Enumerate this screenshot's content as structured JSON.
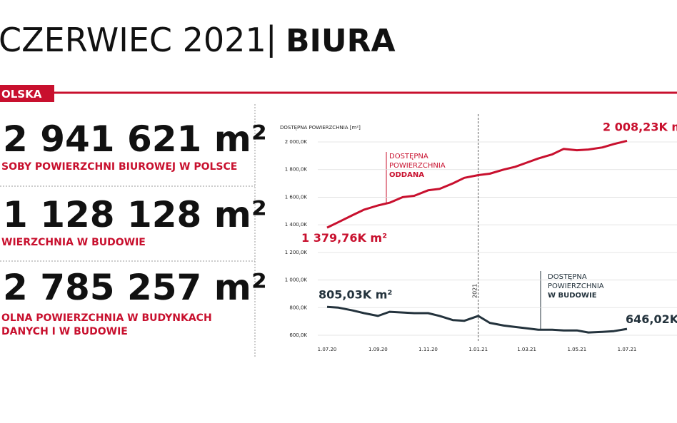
{
  "header": {
    "title": "CZERWIEC 2021",
    "separator": "|",
    "section": "BIURA",
    "tag": "OLSKA"
  },
  "stats": [
    {
      "value": "2 941 621 m²",
      "lines": [
        "SOBY POWIERZCHNI BIUROWEJ W POLSCE"
      ]
    },
    {
      "value": "1 128 128 m²",
      "lines": [
        "WIERZCHNIA W BUDOWIE"
      ]
    },
    {
      "value": "2 785 257 m²",
      "lines": [
        "OLNA POWIERZCHNIA W BUDYNKACH",
        "DANYCH I W BUDOWIE"
      ]
    }
  ],
  "chart_data": {
    "type": "line",
    "ylabel": "DOSTĘPNA POWIERZCHNIA [m²]",
    "annotation_lines": [
      "DOSTĘPNA",
      "POWIERZCHNIA"
    ],
    "marker_line": {
      "x": "2021-01-01",
      "label": "2021"
    },
    "x": [
      "2020-07-01",
      "2020-07-15",
      "2020-08-01",
      "2020-08-15",
      "2020-09-01",
      "2020-09-15",
      "2020-10-01",
      "2020-10-15",
      "2020-11-01",
      "2020-11-15",
      "2020-12-01",
      "2020-12-15",
      "2021-01-01",
      "2021-01-15",
      "2021-02-01",
      "2021-02-15",
      "2021-03-01",
      "2021-03-15",
      "2021-04-01",
      "2021-04-15",
      "2021-05-01",
      "2021-05-15",
      "2021-06-01",
      "2021-06-15",
      "2021-07-01"
    ],
    "series": [
      {
        "name": "ODDANA",
        "color": "#c8102e",
        "values": [
          1379.76,
          1420,
          1470,
          1510,
          1540,
          1560,
          1600,
          1610,
          1650,
          1660,
          1700,
          1740,
          1760,
          1770,
          1800,
          1820,
          1850,
          1880,
          1910,
          1950,
          1940,
          1945,
          1960,
          1985,
          2008.23
        ],
        "value_labels": [
          "1 379,76K m²",
          null,
          null,
          null,
          null,
          null,
          null,
          null,
          null,
          null,
          null,
          null,
          null,
          null,
          null,
          null,
          null,
          null,
          null,
          null,
          null,
          null,
          null,
          null,
          "2 008,23K m"
        ]
      },
      {
        "name": "W BUDOWIE",
        "color": "#24333d",
        "values": [
          805.03,
          800,
          780,
          760,
          740,
          770,
          765,
          760,
          760,
          740,
          710,
          705,
          740,
          690,
          670,
          660,
          650,
          640,
          640,
          635,
          635,
          620,
          625,
          630,
          646.02
        ],
        "value_labels": [
          "805,03K m²",
          null,
          null,
          null,
          null,
          null,
          null,
          null,
          null,
          null,
          null,
          null,
          null,
          null,
          null,
          null,
          null,
          null,
          null,
          null,
          null,
          null,
          null,
          null,
          "646,02K"
        ]
      }
    ],
    "xlim": [
      "2020-07-01",
      "2021-07-01"
    ],
    "xticks": [
      {
        "value": "2020-07-01",
        "label": "1.07.20"
      },
      {
        "value": "2020-09-01",
        "label": "1.09.20"
      },
      {
        "value": "2020-11-01",
        "label": "1.11.20"
      },
      {
        "value": "2021-01-01",
        "label": "1.01.21"
      },
      {
        "value": "2021-03-01",
        "label": "1.03.21"
      },
      {
        "value": "2021-05-01",
        "label": "1.05.21"
      },
      {
        "value": "2021-07-01",
        "label": "1.07.21"
      }
    ],
    "ylim": [
      600,
      2000
    ],
    "yticks": [
      {
        "value": 600,
        "label": "600,0K"
      },
      {
        "value": 800,
        "label": "800,0K"
      },
      {
        "value": 1000,
        "label": "1 000,0K"
      },
      {
        "value": 1200,
        "label": "1 200,0K"
      },
      {
        "value": 1400,
        "label": "1 400,0K"
      },
      {
        "value": 1600,
        "label": "1 600,0K"
      },
      {
        "value": 1800,
        "label": "1 800,0K"
      },
      {
        "value": 2000,
        "label": "2 000,0K"
      }
    ],
    "grid": true
  }
}
